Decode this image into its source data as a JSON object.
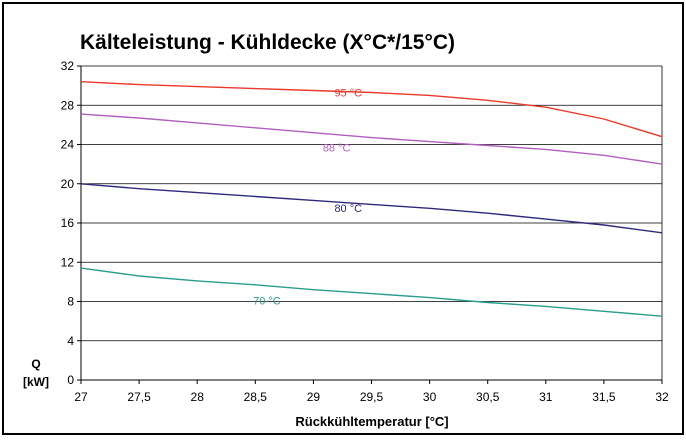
{
  "chart_data": {
    "type": "line",
    "title": "Kälteleistung - Kühldecke (X°C*/15°C)",
    "xlabel": "Rückkühltemperatur [°C]",
    "ylabel_line1": "Q",
    "ylabel_line2": "[kW]",
    "xlim": [
      27,
      32
    ],
    "ylim": [
      0,
      32
    ],
    "x_ticks": [
      27,
      27.5,
      28,
      28.5,
      29,
      29.5,
      30,
      30.5,
      31,
      31.5,
      32
    ],
    "x_tick_labels": [
      "27",
      "27,5",
      "28",
      "28,5",
      "29",
      "29,5",
      "30",
      "30,5",
      "31",
      "31,5",
      "32"
    ],
    "y_ticks": [
      0,
      4,
      8,
      12,
      16,
      20,
      24,
      28,
      32
    ],
    "y_tick_labels": [
      "0",
      "4",
      "8",
      "12",
      "16",
      "20",
      "24",
      "28",
      "32"
    ],
    "grid": "horizontal",
    "series": [
      {
        "name": "95 °C",
        "color": "#e8392a",
        "x": [
          27,
          27.5,
          28,
          28.5,
          29,
          29.5,
          30,
          30.5,
          31,
          31.5,
          32
        ],
        "y": [
          30.4,
          30.1,
          29.9,
          29.7,
          29.5,
          29.3,
          29.0,
          28.5,
          27.8,
          26.6,
          24.8
        ],
        "label_at": [
          29.3,
          28.9
        ]
      },
      {
        "name": "88 °C",
        "color": "#b35fbf",
        "x": [
          27,
          27.5,
          28,
          28.5,
          29,
          29.5,
          30,
          30.5,
          31,
          31.5,
          32
        ],
        "y": [
          27.1,
          26.7,
          26.2,
          25.7,
          25.2,
          24.7,
          24.3,
          23.9,
          23.5,
          22.9,
          22.0
        ],
        "label_at": [
          29.2,
          23.3
        ]
      },
      {
        "name": "80 °C",
        "color": "#2e2a7a",
        "x": [
          27,
          27.5,
          28,
          28.5,
          29,
          29.5,
          30,
          30.5,
          31,
          31.5,
          32
        ],
        "y": [
          20.0,
          19.5,
          19.1,
          18.7,
          18.3,
          17.9,
          17.5,
          17.0,
          16.4,
          15.8,
          15.0
        ],
        "label_at": [
          29.3,
          17.1
        ]
      },
      {
        "name": "70 °C",
        "color": "#2a9d8f",
        "x": [
          27,
          27.5,
          28,
          28.5,
          29,
          29.5,
          30,
          30.5,
          31,
          31.5,
          32
        ],
        "y": [
          11.4,
          10.6,
          10.1,
          9.7,
          9.2,
          8.8,
          8.4,
          7.9,
          7.5,
          7.0,
          6.5
        ],
        "label_at": [
          28.6,
          7.7
        ]
      }
    ]
  }
}
